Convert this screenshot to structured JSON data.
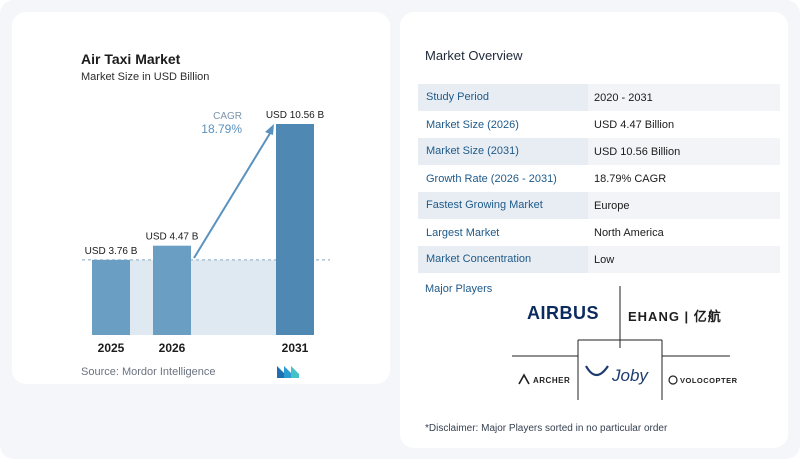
{
  "chart_data": {
    "type": "bar",
    "title": "Air Taxi Market",
    "subtitle": "Market Size in USD Billion",
    "categories": [
      "2025",
      "2026",
      "2031"
    ],
    "values": [
      3.76,
      4.47,
      10.56
    ],
    "data_labels": [
      "USD 3.76 B",
      "USD 4.47 B",
      "USD 10.56 B"
    ],
    "annotation": {
      "label": "CAGR",
      "value": "18.79%"
    },
    "ylim": [
      0,
      11.4
    ],
    "grid": false,
    "bar_color": "#6a9fc3",
    "bar_color_tall": "#4f88b3",
    "baseline_fill": "#dfe9f2"
  },
  "source": "Source:  Mordor Intelligence",
  "overview": {
    "title": "Market Overview",
    "rows": [
      {
        "key": "Study Period",
        "value": "2020 - 2031"
      },
      {
        "key": "Market Size (2026)",
        "value": "USD 4.47 Billion"
      },
      {
        "key": "Market Size (2031)",
        "value": "USD 10.56 Billion"
      },
      {
        "key": "Growth Rate (2026 - 2031)",
        "value": "18.79% CAGR"
      },
      {
        "key": "Fastest Growing Market",
        "value": "Europe"
      },
      {
        "key": "Largest Market",
        "value": "North America"
      },
      {
        "key": "Market Concentration",
        "value": "Low"
      }
    ],
    "players_label": "Major Players",
    "players": [
      "AIRBUS",
      "EHANG | 亿航",
      "Joby",
      "ARCHER",
      "VOLOCOPTER"
    ],
    "disclaimer": "*Disclaimer: Major Players sorted in no particular order"
  },
  "colors": {
    "accent": "#1e5a8a",
    "arrow": "#5a92bf"
  }
}
